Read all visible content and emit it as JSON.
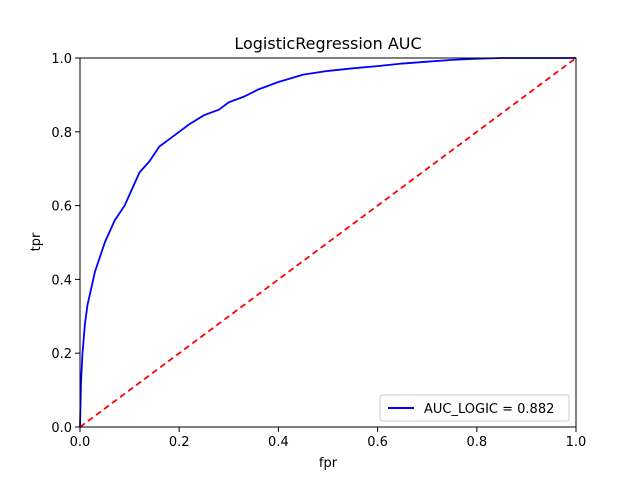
{
  "chart_data": {
    "type": "line",
    "title": "LogisticRegression AUC",
    "xlabel": "fpr",
    "ylabel": "tpr",
    "xlim": [
      0.0,
      1.0
    ],
    "ylim": [
      0.0,
      1.0
    ],
    "xticks": [
      "0.0",
      "0.2",
      "0.4",
      "0.6",
      "0.8",
      "1.0"
    ],
    "yticks": [
      "0.0",
      "0.2",
      "0.4",
      "0.6",
      "0.8",
      "1.0"
    ],
    "grid": false,
    "legend_position": "bottom-right",
    "series": [
      {
        "name": "AUC_LOGIC = 0.882",
        "color": "#0000ff",
        "style": "solid",
        "x": [
          0.0,
          0.002,
          0.005,
          0.01,
          0.015,
          0.02,
          0.03,
          0.04,
          0.05,
          0.06,
          0.07,
          0.08,
          0.09,
          0.1,
          0.12,
          0.14,
          0.16,
          0.18,
          0.2,
          0.22,
          0.25,
          0.28,
          0.3,
          0.33,
          0.36,
          0.4,
          0.45,
          0.5,
          0.55,
          0.6,
          0.65,
          0.7,
          0.75,
          0.8,
          0.85,
          0.9,
          0.95,
          1.0
        ],
        "y": [
          0.0,
          0.12,
          0.2,
          0.28,
          0.33,
          0.36,
          0.42,
          0.46,
          0.5,
          0.53,
          0.56,
          0.58,
          0.6,
          0.63,
          0.69,
          0.72,
          0.76,
          0.78,
          0.8,
          0.82,
          0.845,
          0.86,
          0.88,
          0.895,
          0.915,
          0.935,
          0.955,
          0.965,
          0.972,
          0.978,
          0.985,
          0.99,
          0.995,
          0.998,
          1.0,
          1.0,
          1.0,
          1.0
        ]
      },
      {
        "name": "",
        "color": "#ff0000",
        "style": "dashed",
        "x": [
          0.0,
          1.0
        ],
        "y": [
          0.0,
          1.0
        ]
      }
    ]
  }
}
